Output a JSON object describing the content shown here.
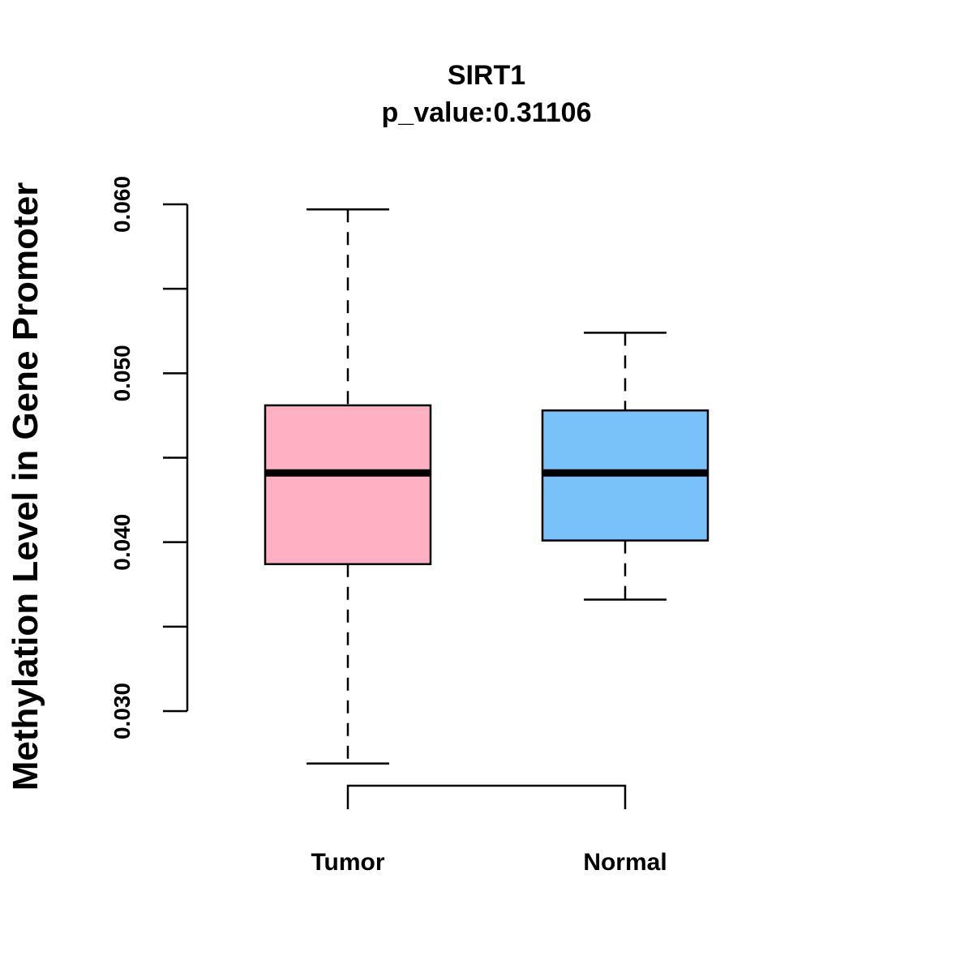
{
  "chart_data": {
    "type": "boxplot",
    "title": "SIRT1",
    "subtitle": "p_value:0.31106",
    "xlabel": "",
    "ylabel": "Methylation Level in Gene Promoter",
    "ylim": [
      0.03,
      0.06
    ],
    "y_ticks": [
      0.03,
      0.035,
      0.04,
      0.045,
      0.05,
      0.055,
      0.06
    ],
    "y_tick_labels": [
      "0.030",
      "",
      "0.040",
      "",
      "0.050",
      "",
      "0.060"
    ],
    "grid": false,
    "categories": [
      "Tumor",
      "Normal"
    ],
    "series": [
      {
        "name": "Tumor",
        "color": "#FFB1C3",
        "whisker_low": 0.0269,
        "q1": 0.0387,
        "median": 0.0441,
        "q3": 0.0481,
        "whisker_high": 0.0597
      },
      {
        "name": "Normal",
        "color": "#79C1F9",
        "whisker_low": 0.0366,
        "q1": 0.0401,
        "median": 0.0441,
        "q3": 0.0478,
        "whisker_high": 0.0524
      }
    ],
    "comparison_bracket": [
      "Tumor",
      "Normal"
    ]
  }
}
